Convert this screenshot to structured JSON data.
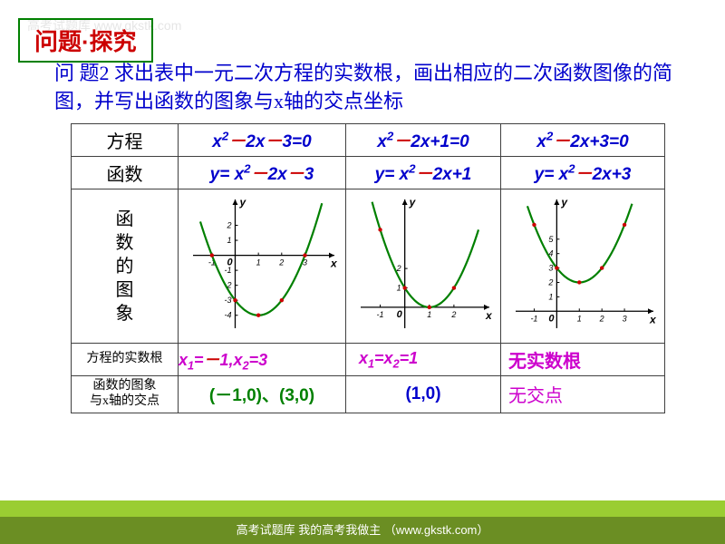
{
  "title": "问题·探究",
  "watermark": "高考试题库\nwww.gkstk.com",
  "problem": "问 题2  求出表中一元二次方程的实数根，画出相应的二次函数图像的简图，并写出函数的图象与x轴的交点坐标",
  "headers": {
    "col0_r1": "方程",
    "col0_r2": "函数",
    "col0_r3": "函\n数\n的\n图\n象",
    "col0_r4": "方程的实数根",
    "col0_r5": "函数的图象\n与x轴的交点"
  },
  "cols": [
    {
      "equation_html": "x<sup>2</sup><span>－</span>2x<span>－</span>3=0",
      "function_html": "y= x<sup>2</sup><span>－</span>2x<span>－</span>3",
      "roots_html": "x<sub>1</sub>=<span style='color:#cc0000'>－</span>1,x<sub>2</sub>=3",
      "intersect": "(－1,0)、(3,0)",
      "intersect_color": "#008000",
      "graph": {
        "xrange": [
          -1.5,
          3.8
        ],
        "yrange": [
          -4.5,
          3
        ],
        "vertex": [
          1,
          -4
        ],
        "curve_color": "#008000",
        "xticks": [
          {
            "v": -1,
            "l": "-1"
          },
          {
            "v": 1,
            "l": "1"
          },
          {
            "v": 2,
            "l": "2"
          },
          {
            "v": 3,
            "l": "3"
          }
        ],
        "yticks": [
          {
            "v": -4,
            "l": "-4"
          },
          {
            "v": -3,
            "l": "-3"
          },
          {
            "v": -2,
            "l": "-2"
          },
          {
            "v": -1,
            "l": "-1"
          },
          {
            "v": 1,
            "l": "1"
          },
          {
            "v": 2,
            "l": "2"
          }
        ],
        "points": [
          [
            -1,
            0
          ],
          [
            3,
            0
          ],
          [
            1,
            -4
          ],
          [
            0,
            -3
          ],
          [
            2,
            -3
          ]
        ]
      }
    },
    {
      "equation_html": "x<sup>2</sup><span>－</span>2x+1=0",
      "function_html": "y= x<sup>2</sup><span>－</span>2x+1",
      "roots_html": "x<sub>1</sub>=x<sub>2</sub>=1",
      "intersect": "(1,0)",
      "intersect_color": "#0000cc",
      "graph": {
        "xrange": [
          -1.5,
          3
        ],
        "yrange": [
          -0.8,
          5
        ],
        "vertex": [
          1,
          0
        ],
        "curve_color": "#008000",
        "xticks": [
          {
            "v": -1,
            "l": "-1"
          },
          {
            "v": 1,
            "l": "1"
          },
          {
            "v": 2,
            "l": "2"
          }
        ],
        "yticks": [
          {
            "v": 1,
            "l": "1"
          },
          {
            "v": 2,
            "l": "2"
          }
        ],
        "points": [
          [
            1,
            0
          ],
          [
            0,
            1
          ],
          [
            2,
            1
          ],
          [
            -1,
            4
          ]
        ]
      }
    },
    {
      "equation_html": "x<sup>2</sup><span>－</span>2x+3=0",
      "function_html": "y= x<sup>2</sup><span>－</span>2x+3",
      "roots_html": "无实数根",
      "intersect": "无交点",
      "intersect_color": "#cc00cc",
      "graph": {
        "xrange": [
          -1.5,
          3.8
        ],
        "yrange": [
          -0.8,
          7
        ],
        "vertex": [
          1,
          2
        ],
        "curve_color": "#008000",
        "xticks": [
          {
            "v": -1,
            "l": "-1"
          },
          {
            "v": 1,
            "l": "1"
          },
          {
            "v": 2,
            "l": "2"
          },
          {
            "v": 3,
            "l": "3"
          }
        ],
        "yticks": [
          {
            "v": 1,
            "l": "1"
          },
          {
            "v": 2,
            "l": "2"
          },
          {
            "v": 3,
            "l": "3"
          },
          {
            "v": 4,
            "l": "4"
          },
          {
            "v": 5,
            "l": "5"
          }
        ],
        "points": [
          [
            1,
            2
          ],
          [
            0,
            3
          ],
          [
            2,
            3
          ],
          [
            -1,
            6
          ],
          [
            3,
            6
          ]
        ]
      }
    }
  ],
  "footer": "高考试题库 我的高考我做主 （www.gkstk.com）"
}
